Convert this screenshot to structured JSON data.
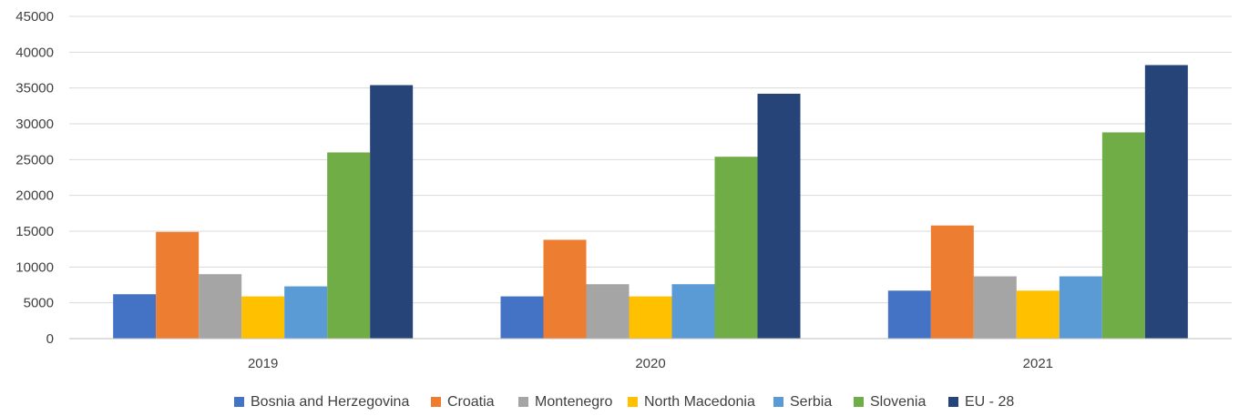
{
  "chart_data": {
    "type": "bar",
    "title": "",
    "xlabel": "",
    "ylabel": "",
    "categories": [
      "2019",
      "2020",
      "2021"
    ],
    "ylim": [
      0,
      45000
    ],
    "yticks": [
      0,
      5000,
      10000,
      15000,
      20000,
      25000,
      30000,
      35000,
      40000,
      45000
    ],
    "grid": true,
    "legend_position": "bottom",
    "series": [
      {
        "name": "Bosnia and Herzegovina",
        "color": "#4472c4",
        "values": [
          6200,
          5900,
          6700
        ]
      },
      {
        "name": "Croatia",
        "color": "#ed7d31",
        "values": [
          14900,
          13800,
          15800
        ]
      },
      {
        "name": "Montenegro",
        "color": "#a5a5a5",
        "values": [
          9000,
          7600,
          8700
        ]
      },
      {
        "name": "North Macedonia",
        "color": "#ffc000",
        "values": [
          5900,
          5900,
          6700
        ]
      },
      {
        "name": "Serbia",
        "color": "#5b9bd5",
        "values": [
          7300,
          7600,
          8700
        ]
      },
      {
        "name": "Slovenia",
        "color": "#70ad47",
        "values": [
          26000,
          25400,
          28800
        ]
      },
      {
        "name": "EU - 28",
        "color": "#264478",
        "values": [
          35400,
          34200,
          38200
        ]
      }
    ]
  }
}
